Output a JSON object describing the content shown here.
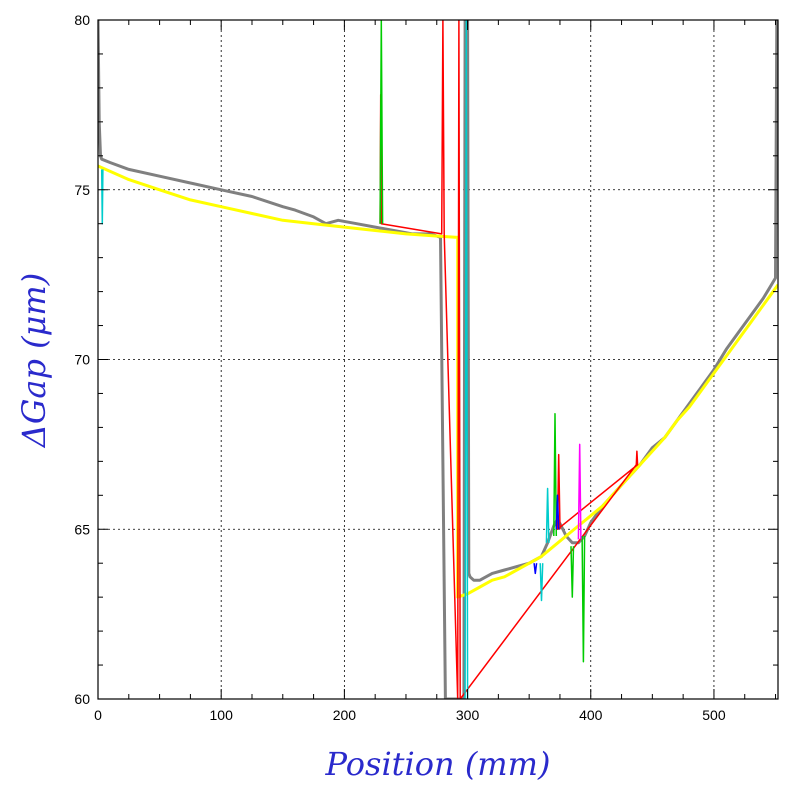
{
  "chart_data": {
    "type": "line",
    "xlabel": "Position (mm)",
    "ylabel": "ΔGap (μm)",
    "xlim": [
      0,
      552
    ],
    "ylim": [
      60,
      80
    ],
    "xticks": [
      {
        "value": 0,
        "label": "0"
      },
      {
        "value": 100,
        "label": "100"
      },
      {
        "value": 200,
        "label": "200"
      },
      {
        "value": 300,
        "label": "300"
      },
      {
        "value": 400,
        "label": "400"
      },
      {
        "value": 500,
        "label": "500"
      }
    ],
    "yticks": [
      {
        "value": 60,
        "label": "60"
      },
      {
        "value": 65,
        "label": "65"
      },
      {
        "value": 70,
        "label": "70"
      },
      {
        "value": 75,
        "label": "75"
      },
      {
        "value": 80,
        "label": "80"
      }
    ],
    "grid": true,
    "series": [
      {
        "color": "#808080",
        "x": [
          0,
          1,
          2,
          3,
          10,
          25,
          50,
          75,
          100,
          125,
          150,
          160,
          175,
          185,
          195,
          210,
          225,
          240,
          255,
          270,
          278,
          282,
          283,
          297,
          298,
          300,
          301,
          302,
          305,
          310,
          315,
          320,
          330,
          340,
          350,
          360,
          365,
          370,
          373,
          376,
          380,
          385,
          390,
          395,
          400,
          410,
          420,
          430,
          440,
          450,
          460,
          470,
          480,
          490,
          500,
          510,
          520,
          530,
          540,
          545,
          550,
          551,
          552
        ],
        "y": [
          80,
          77,
          76,
          75.9,
          75.8,
          75.6,
          75.4,
          75.2,
          75.0,
          74.8,
          74.5,
          74.4,
          74.2,
          74.0,
          74.1,
          74.0,
          73.9,
          73.8,
          73.7,
          73.7,
          73.6,
          60,
          60,
          60,
          80,
          80,
          63.7,
          63.6,
          63.5,
          63.5,
          63.6,
          63.7,
          63.8,
          63.9,
          64.0,
          64.2,
          64.6,
          65.1,
          65.3,
          65.1,
          64.8,
          64.6,
          64.6,
          64.8,
          65.2,
          65.7,
          66.1,
          66.5,
          66.9,
          67.4,
          67.7,
          68.2,
          68.7,
          69.2,
          69.7,
          70.3,
          70.8,
          71.3,
          71.8,
          72.1,
          72.4,
          80,
          80
        ]
      },
      {
        "color": "#ffff00",
        "x": [
          0,
          25,
          50,
          75,
          100,
          125,
          150,
          175,
          200,
          225,
          250,
          270,
          290,
          292,
          292,
          300,
          310,
          320,
          330,
          340,
          350,
          360,
          370,
          380,
          390,
          400,
          410,
          420,
          430,
          440,
          450,
          460,
          470,
          480,
          490,
          500,
          510,
          520,
          530,
          540,
          552
        ],
        "y": [
          75.7,
          75.3,
          75.0,
          74.7,
          74.5,
          74.3,
          74.1,
          74.0,
          73.9,
          73.8,
          73.7,
          73.65,
          73.6,
          73.6,
          63.0,
          63.1,
          63.3,
          63.5,
          63.6,
          63.8,
          64.0,
          64.2,
          64.5,
          64.8,
          65.1,
          65.4,
          65.7,
          66.1,
          66.5,
          66.9,
          67.3,
          67.7,
          68.2,
          68.6,
          69.1,
          69.6,
          70.1,
          70.6,
          71.1,
          71.6,
          72.2
        ]
      },
      {
        "color": "#ff0000",
        "x": [
          229,
          229.5,
          230,
          279,
          280,
          281,
          292,
          293,
          294,
          437,
          437.5,
          438,
          373,
          374,
          375
        ],
        "y": [
          74.0,
          77.8,
          74.0,
          73.7,
          80,
          73.7,
          60,
          80,
          60,
          66.9,
          67.3,
          66.9,
          65.0,
          67.2,
          65.0
        ]
      },
      {
        "color": "#00cc00",
        "x": [
          229,
          230,
          231,
          370,
          371,
          372,
          384,
          385,
          386,
          393,
          394,
          395
        ],
        "y": [
          74.0,
          80,
          74.0,
          64.8,
          68.4,
          64.8,
          64.5,
          63.0,
          64.5,
          64.8,
          61.1,
          64.8
        ],
        "gap_after": [
          2,
          5,
          8
        ]
      },
      {
        "color": "#00cccc",
        "x": [
          3,
          3.5,
          4,
          298,
          299,
          300,
          359,
          360,
          361,
          364,
          365,
          366
        ],
        "y": [
          75.6,
          74.0,
          75.6,
          60,
          80,
          60,
          64.0,
          62.9,
          64.0,
          64.6,
          66.2,
          64.6
        ],
        "gap_after": [
          2,
          5,
          8
        ]
      },
      {
        "color": "#ff00ff",
        "x": [
          390,
          391,
          392
        ],
        "y": [
          64.7,
          67.5,
          64.7
        ]
      },
      {
        "color": "#0000ff",
        "x": [
          354,
          355,
          356,
          372,
          373,
          374
        ],
        "y": [
          64.0,
          63.7,
          64.0,
          65.0,
          66.0,
          65.0
        ],
        "gap_after": [
          2
        ]
      }
    ]
  }
}
